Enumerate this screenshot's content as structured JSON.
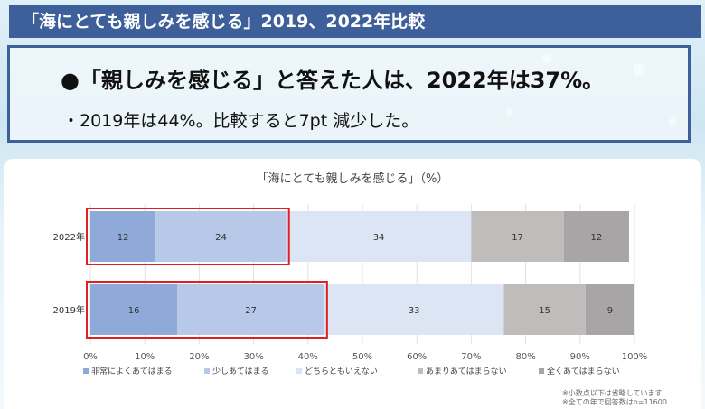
{
  "header": {
    "title": "「海にとても親しみを感じる」2019、2022年比較"
  },
  "summary": {
    "headline": "●「親しみを感じる」と答えた人は、2022年は37%。",
    "subline": "・2019年は44%。比較すると7pt 減少した。"
  },
  "notes": {
    "rounding": "※小数点以下は省略しています",
    "respondents": "※全ての年で回答数はn=11600"
  },
  "chart_data": {
    "type": "bar",
    "orientation": "horizontal",
    "stacked": true,
    "title": "「海にとても親しみを感じる」（%）",
    "categories": [
      "2022年",
      "2019年"
    ],
    "series": [
      {
        "name": "非常によくあてはまる",
        "values": [
          12,
          16
        ],
        "color": "#8faad8"
      },
      {
        "name": "少しあてはまる",
        "values": [
          24,
          27
        ],
        "color": "#b7c8e8"
      },
      {
        "name": "どちらともいえない",
        "values": [
          34,
          33
        ],
        "color": "#dce5f3"
      },
      {
        "name": "あまりあてはまらない",
        "values": [
          17,
          15
        ],
        "color": "#bfbcbc"
      },
      {
        "name": "全くあてはまらない",
        "values": [
          12,
          9
        ],
        "color": "#a7a5a5"
      }
    ],
    "xlim": [
      0,
      100
    ],
    "x_ticks": [
      "0%",
      "10%",
      "20%",
      "30%",
      "40%",
      "50%",
      "60%",
      "70%",
      "80%",
      "90%",
      "100%"
    ],
    "grid": true,
    "legend_position": "bottom",
    "highlight": {
      "description_color": "#e02020",
      "series_covered": 2
    }
  }
}
